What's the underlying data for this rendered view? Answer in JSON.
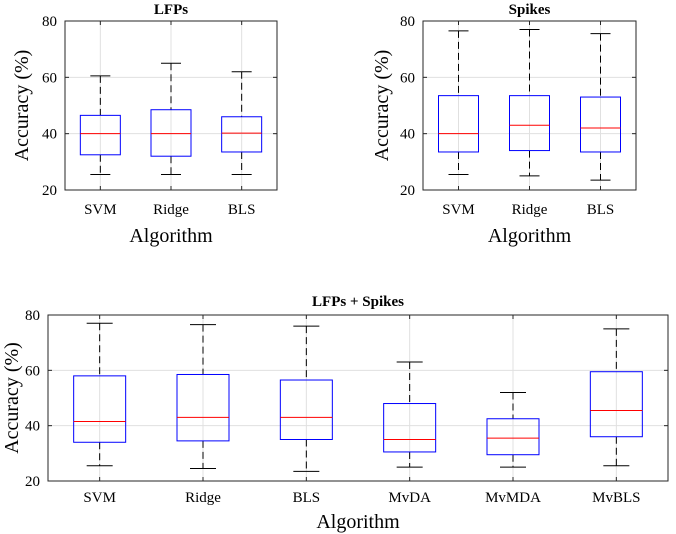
{
  "chart_data": [
    {
      "type": "box",
      "title": "LFPs",
      "xlabel": "Algorithm",
      "ylabel": "Accuracy (%)",
      "ylim": [
        20,
        80
      ],
      "yticks": [
        20,
        40,
        60,
        80
      ],
      "grid": true,
      "categories": [
        "SVM",
        "Ridge",
        "BLS"
      ],
      "boxes": [
        {
          "min": 25.5,
          "q1": 32.5,
          "median": 40,
          "q3": 46.5,
          "max": 60.5
        },
        {
          "min": 25.5,
          "q1": 32,
          "median": 40,
          "q3": 48.5,
          "max": 65
        },
        {
          "min": 25.5,
          "q1": 33.5,
          "median": 40.2,
          "q3": 46,
          "max": 62
        }
      ]
    },
    {
      "type": "box",
      "title": "Spikes",
      "xlabel": "Algorithm",
      "ylabel": "Accuracy (%)",
      "ylim": [
        20,
        80
      ],
      "yticks": [
        20,
        40,
        60,
        80
      ],
      "grid": true,
      "categories": [
        "SVM",
        "Ridge",
        "BLS"
      ],
      "boxes": [
        {
          "min": 25.5,
          "q1": 33.5,
          "median": 40,
          "q3": 53.5,
          "max": 76.5
        },
        {
          "min": 25,
          "q1": 34,
          "median": 43,
          "q3": 53.5,
          "max": 77
        },
        {
          "min": 23.5,
          "q1": 33.5,
          "median": 42,
          "q3": 53,
          "max": 75.5
        }
      ]
    },
    {
      "type": "box",
      "title": "LFPs + Spikes",
      "xlabel": "Algorithm",
      "ylabel": "Accuracy (%)",
      "ylim": [
        20,
        80
      ],
      "yticks": [
        20,
        40,
        60,
        80
      ],
      "grid": true,
      "categories": [
        "SVM",
        "Ridge",
        "BLS",
        "MvDA",
        "MvMDA",
        "MvBLS"
      ],
      "boxes": [
        {
          "min": 25.5,
          "q1": 34,
          "median": 41.5,
          "q3": 58,
          "max": 77
        },
        {
          "min": 24.5,
          "q1": 34.5,
          "median": 43,
          "q3": 58.5,
          "max": 76.5
        },
        {
          "min": 23.5,
          "q1": 35,
          "median": 43,
          "q3": 56.5,
          "max": 76
        },
        {
          "min": 25,
          "q1": 30.5,
          "median": 35,
          "q3": 48,
          "max": 63
        },
        {
          "min": 25,
          "q1": 29.5,
          "median": 35.5,
          "q3": 42.5,
          "max": 52
        },
        {
          "min": 25.5,
          "q1": 36,
          "median": 45.5,
          "q3": 59.5,
          "max": 75
        }
      ]
    }
  ],
  "colors": {
    "box": "#0000ff",
    "median": "#ff0000",
    "whisker": "#000000",
    "grid": "#e0e0e0",
    "axis": "#262626"
  }
}
